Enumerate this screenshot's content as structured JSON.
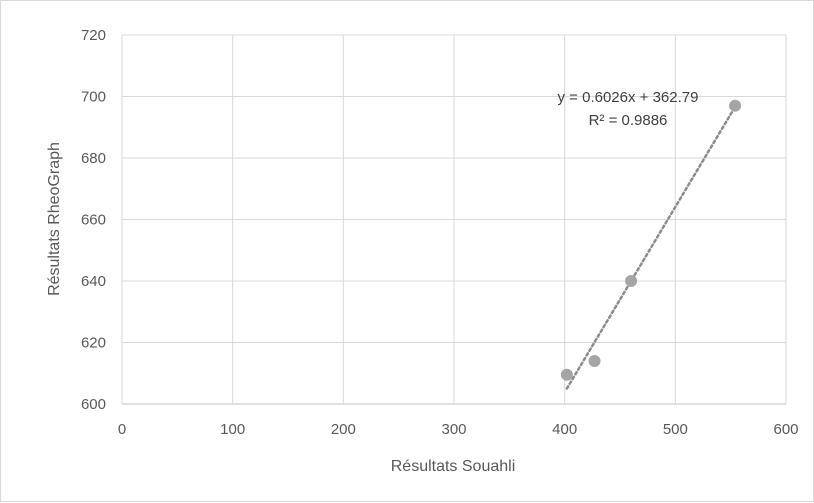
{
  "chart_data": {
    "type": "scatter",
    "xlabel": "Résultats Souahli",
    "ylabel": "Résultats RheoGraph",
    "xlim": [
      0,
      600
    ],
    "ylim": [
      600,
      720
    ],
    "x_ticks": [
      0,
      100,
      200,
      300,
      400,
      500,
      600
    ],
    "y_ticks": [
      600,
      620,
      640,
      660,
      680,
      700,
      720
    ],
    "grid": "on",
    "legend": "none",
    "series": [
      {
        "points": [
          {
            "x": 402,
            "y": 609.5
          },
          {
            "x": 427,
            "y": 614
          },
          {
            "x": 460,
            "y": 640
          },
          {
            "x": 554,
            "y": 697
          }
        ],
        "color": "#a5a5a5"
      }
    ],
    "trendline": {
      "type": "linear",
      "slope": 0.6026,
      "intercept": 362.79,
      "x_range": [
        402,
        554
      ],
      "color": "#8c8c8c",
      "style": "dotted"
    },
    "annotations": {
      "equation": "y = 0.6026x + 362.79",
      "r_squared": "R² = 0.9886"
    }
  }
}
